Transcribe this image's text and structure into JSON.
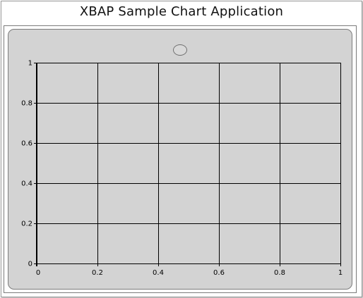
{
  "window": {
    "title": "XBAP Sample Chart Application"
  },
  "chart_data": {
    "type": "line",
    "title": "",
    "xlabel": "",
    "ylabel": "",
    "xlim": [
      0,
      1
    ],
    "ylim": [
      0,
      1
    ],
    "x_ticks": [
      "0",
      "0.2",
      "0.4",
      "0.6",
      "0.8",
      "1"
    ],
    "y_ticks": [
      "0",
      "0.2",
      "0.4",
      "0.6",
      "0.8",
      "1"
    ],
    "grid": true,
    "legend": "top-center",
    "series": [],
    "colors": {
      "panel": "#d3d3d3",
      "grid": "#000000",
      "marker": "#d9d9d9"
    }
  }
}
